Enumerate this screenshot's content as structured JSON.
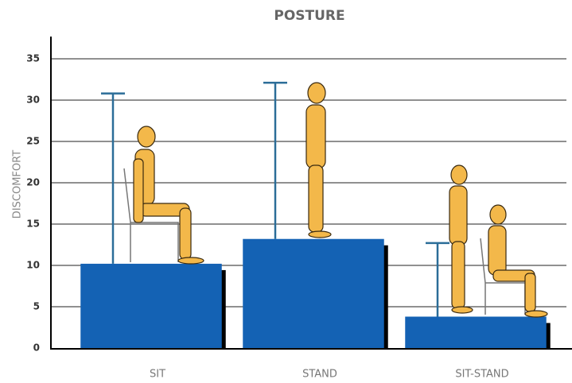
{
  "chart_data": {
    "type": "bar",
    "title": "POSTURE",
    "y_label": "DISCOMFORT",
    "categories": [
      "SIT",
      "STAND",
      "SIT-STAND"
    ],
    "values": [
      10.2,
      13.2,
      3.8
    ],
    "errors": [
      20.6,
      18.9,
      8.9
    ],
    "color": "#1462b4",
    "error_color": "#2b6d98",
    "ylim": [
      0,
      37.5
    ],
    "yticks": [
      0,
      5,
      10,
      15,
      20,
      25,
      30,
      35
    ],
    "grid": true
  }
}
